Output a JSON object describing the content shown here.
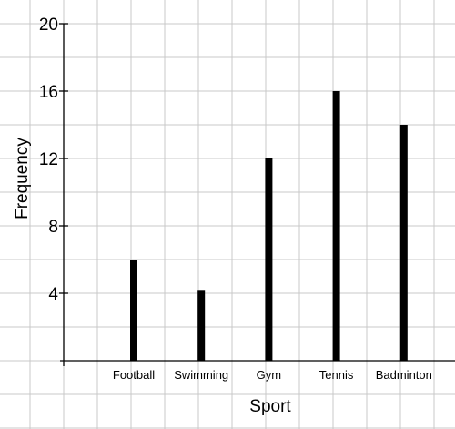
{
  "chart_data": {
    "type": "bar",
    "categories": [
      "Football",
      "Swimming",
      "Gym",
      "Tennis",
      "Badminton"
    ],
    "values": [
      6,
      4.2,
      12,
      16,
      14
    ],
    "title": "",
    "xlabel": "Sport",
    "ylabel": "Frequency",
    "ylim": [
      0,
      20
    ],
    "yticks": [
      4,
      8,
      12,
      16,
      20
    ],
    "grid": true,
    "bar_color": "#000000",
    "grid_color": "#c8c8c8"
  }
}
